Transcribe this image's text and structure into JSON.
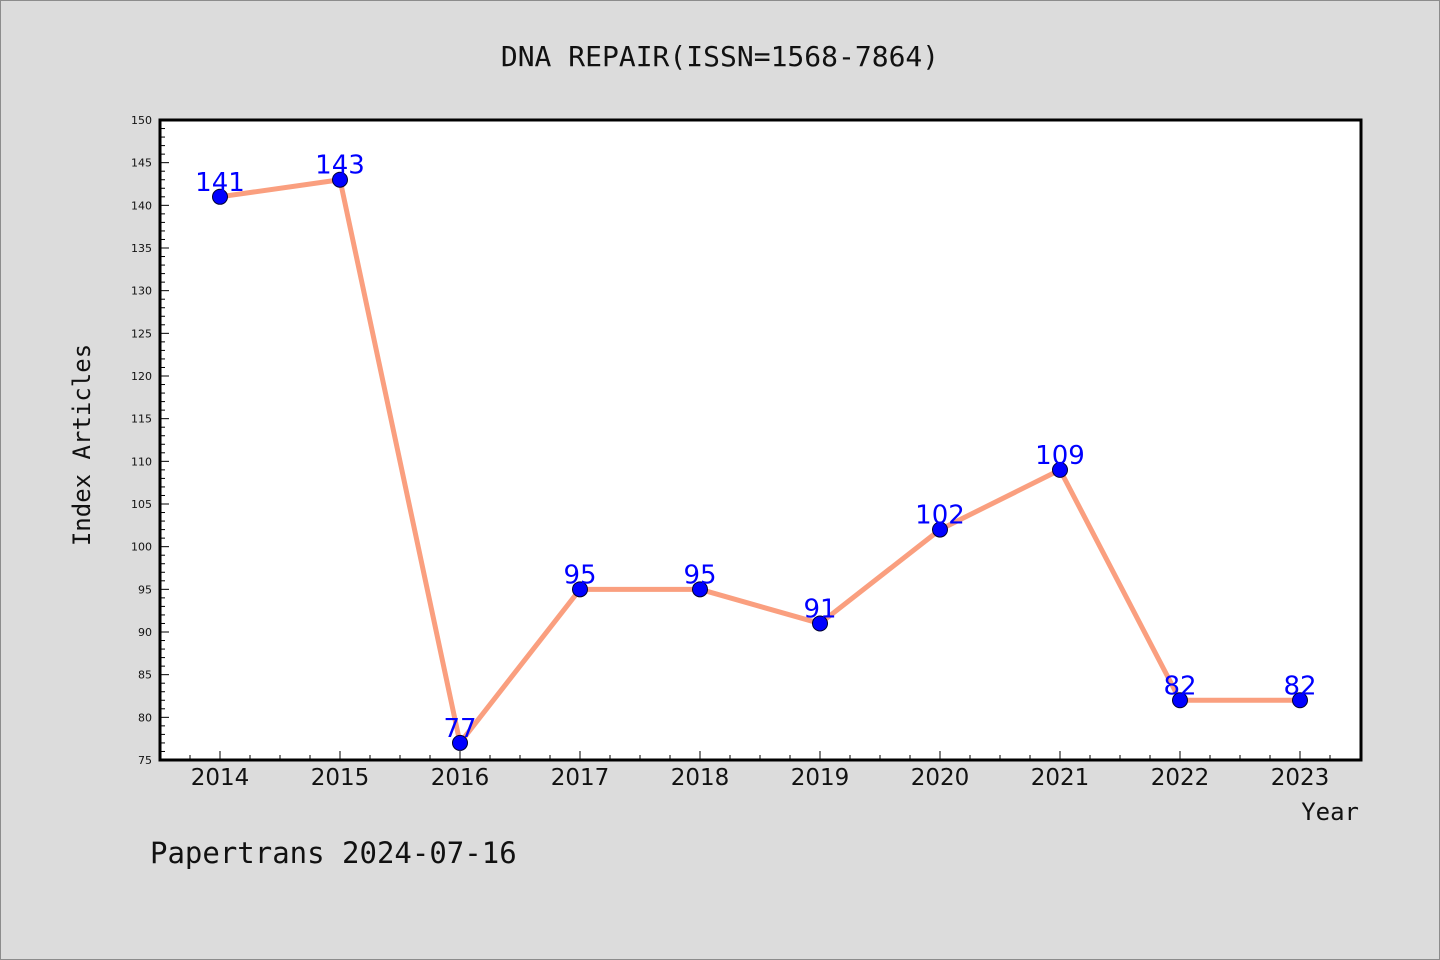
{
  "colors": {
    "background": "#dcdcdc",
    "plot_background": "#ffffff",
    "line": "#fa9f7f",
    "marker": "#0000ff",
    "data_label": "#0000ff"
  },
  "footer": "Papertrans 2024-07-16",
  "chart_data": {
    "type": "line",
    "title": "DNA REPAIR(ISSN=1568-7864)",
    "xlabel": "Year",
    "ylabel": "Index Articles",
    "categories": [
      "2014",
      "2015",
      "2016",
      "2017",
      "2018",
      "2019",
      "2020",
      "2021",
      "2022",
      "2023"
    ],
    "series": [
      {
        "values": [
          141,
          143,
          77,
          95,
          95,
          91,
          102,
          109,
          82,
          82
        ]
      }
    ],
    "ylim": [
      75,
      150
    ],
    "yticks": [
      75,
      80,
      85,
      90,
      95,
      100,
      105,
      110,
      115,
      120,
      125,
      130,
      135,
      140,
      145,
      150
    ],
    "grid": false,
    "data_labels": true
  }
}
